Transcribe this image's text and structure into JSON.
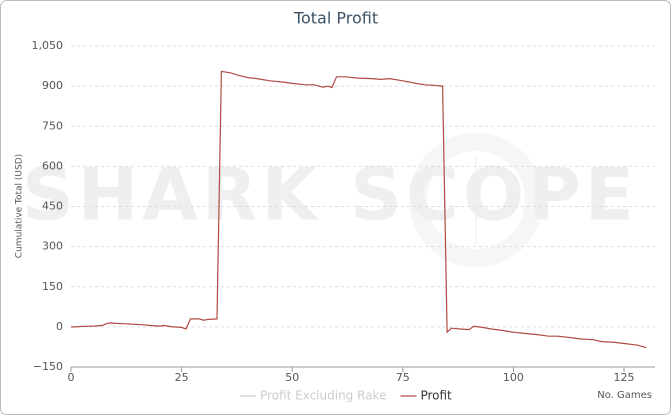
{
  "chart_data": {
    "type": "line",
    "title": "Total Profit",
    "y_label": "Cumulative Total (USD)",
    "x_label": "No. Games",
    "watermark": "SHARK SCOPE",
    "x": [
      0,
      1,
      3,
      5,
      7,
      8,
      9,
      10,
      12,
      14,
      16,
      18,
      20,
      21,
      23,
      25,
      26,
      27,
      29,
      30,
      31,
      33,
      34,
      36,
      38,
      40,
      42,
      45,
      48,
      50,
      53,
      55,
      57,
      58,
      59,
      60,
      62,
      65,
      68,
      70,
      72,
      75,
      78,
      80,
      82,
      84,
      85,
      86,
      88,
      90,
      91,
      93,
      95,
      97,
      100,
      103,
      105,
      108,
      110,
      113,
      115,
      118,
      120,
      123,
      125,
      128,
      130
    ],
    "series": [
      {
        "name": "Profit Excluding Rake",
        "color": "#cccccc",
        "visible": false
      },
      {
        "name": "Profit",
        "color": "#b24a44",
        "visible": true,
        "values": [
          0,
          0,
          2,
          3,
          5,
          12,
          15,
          13,
          12,
          10,
          8,
          5,
          3,
          5,
          0,
          -2,
          -8,
          30,
          30,
          25,
          28,
          30,
          955,
          950,
          940,
          932,
          928,
          920,
          915,
          910,
          905,
          905,
          896,
          900,
          895,
          935,
          935,
          930,
          928,
          925,
          928,
          920,
          910,
          905,
          903,
          900,
          -20,
          -5,
          -8,
          -10,
          2,
          -2,
          -8,
          -12,
          -20,
          -25,
          -28,
          -35,
          -35,
          -40,
          -45,
          -48,
          -55,
          -58,
          -62,
          -68,
          -78
        ]
      }
    ],
    "xlim": [
      0,
      132
    ],
    "xticks": [
      0,
      25,
      50,
      75,
      100,
      125
    ],
    "ylim": [
      -150,
      1050
    ],
    "yticks": [
      {
        "value": -150,
        "label": "−150"
      },
      0,
      150,
      300,
      450,
      600,
      750,
      900,
      {
        "value": 1050,
        "label": "1,050"
      }
    ],
    "grid": true
  }
}
